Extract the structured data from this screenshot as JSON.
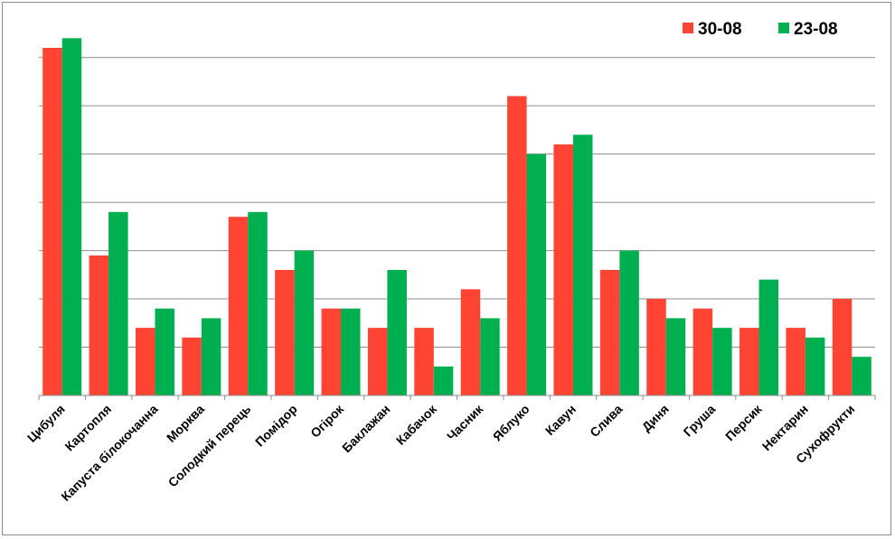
{
  "chart_data": {
    "type": "bar",
    "title": "",
    "xlabel": "",
    "ylabel": "",
    "ylim": [
      0,
      36
    ],
    "y_tick_labels_visible": false,
    "grid": "horizontal",
    "legend_position": "top-right",
    "categories": [
      "Цибуля",
      "Картопля",
      "Капуста білокочанна",
      "Морква",
      "Солодкий перець",
      "Помідор",
      "Огірок",
      "Баклажан",
      "Кабачок",
      "Часник",
      "Яблуко",
      "Кавун",
      "Слива",
      "Диня",
      "Груша",
      "Персик",
      "Нектарин",
      "Сухофрукти"
    ],
    "series": [
      {
        "name": "30-08",
        "color": "#ff4433",
        "values": [
          36,
          14.5,
          7,
          6,
          18.5,
          13,
          9,
          7,
          7,
          11,
          31,
          26,
          13,
          10,
          9,
          7,
          7,
          10
        ]
      },
      {
        "name": "23-08",
        "color": "#00b050",
        "values": [
          37,
          19,
          9,
          8,
          19,
          15,
          9,
          13,
          3,
          8,
          25,
          27,
          15,
          8,
          7,
          12,
          6,
          4
        ]
      }
    ]
  }
}
